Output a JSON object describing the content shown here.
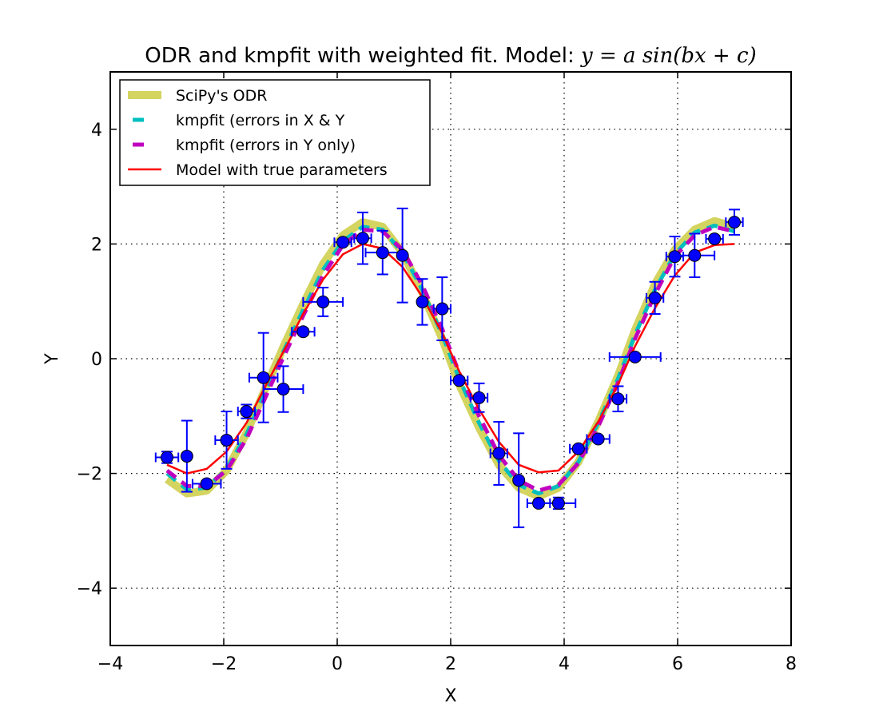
{
  "chart_data": {
    "type": "scatter",
    "title_prefix": "ODR and kmpfit with weighted fit. Model: ",
    "title_formula": "y = a sin(bx + c)",
    "xlabel": "X",
    "ylabel": "Y",
    "xlim": [
      -4,
      8
    ],
    "ylim": [
      -5,
      5
    ],
    "xticks": [
      -4,
      -2,
      0,
      2,
      4,
      6,
      8
    ],
    "yticks": [
      -4,
      -2,
      0,
      2,
      4
    ],
    "xtick_labels": [
      "−4",
      "−2",
      "0",
      "2",
      "4",
      "6",
      "8"
    ],
    "ytick_labels": [
      "−4",
      "−2",
      "0",
      "2",
      "4"
    ],
    "grid": true,
    "legend_position": "top-left",
    "colors": {
      "odr": "#cccc44",
      "kmpfit_xy": "#00bfbf",
      "kmpfit_y": "#bf00bf",
      "true_model": "#ff0000",
      "points": "#0000ff"
    },
    "legend": [
      {
        "label": "SciPy's ODR",
        "color": "#cccc44",
        "style": "thick"
      },
      {
        "label": "kmpfit (errors in X & Y",
        "color": "#00bfbf",
        "style": "dashed"
      },
      {
        "label": "kmpfit (errors in Y only)",
        "color": "#bf00bf",
        "style": "dashed"
      },
      {
        "label": "Model with true parameters",
        "color": "#ff0000",
        "style": "solid"
      }
    ],
    "points": [
      {
        "x": -3.0,
        "y": -1.72,
        "xerr": 0.2,
        "yerr": 0.1
      },
      {
        "x": -2.65,
        "y": -1.7,
        "xerr": 0.0,
        "yerr": 0.62
      },
      {
        "x": -2.3,
        "y": -2.18,
        "xerr": 0.25,
        "yerr": 0.05
      },
      {
        "x": -1.95,
        "y": -1.42,
        "xerr": 0.2,
        "yerr": 0.5
      },
      {
        "x": -1.6,
        "y": -0.92,
        "xerr": 0.15,
        "yerr": 0.12
      },
      {
        "x": -1.3,
        "y": -0.33,
        "xerr": 0.25,
        "yerr": 0.78
      },
      {
        "x": -0.95,
        "y": -0.53,
        "xerr": 0.35,
        "yerr": 0.4
      },
      {
        "x": -0.6,
        "y": 0.47,
        "xerr": 0.2,
        "yerr": 0.05
      },
      {
        "x": -0.25,
        "y": 0.99,
        "xerr": 0.35,
        "yerr": 0.25
      },
      {
        "x": 0.1,
        "y": 2.03,
        "xerr": 0.15,
        "yerr": 0.05
      },
      {
        "x": 0.45,
        "y": 2.1,
        "xerr": 0.15,
        "yerr": 0.45
      },
      {
        "x": 0.8,
        "y": 1.85,
        "xerr": 0.3,
        "yerr": 0.38
      },
      {
        "x": 1.15,
        "y": 1.8,
        "xerr": 0.0,
        "yerr": 0.82
      },
      {
        "x": 1.5,
        "y": 0.99,
        "xerr": 0.0,
        "yerr": 0.4
      },
      {
        "x": 1.85,
        "y": 0.87,
        "xerr": 0.15,
        "yerr": 0.55
      },
      {
        "x": 2.15,
        "y": -0.38,
        "xerr": 0.15,
        "yerr": 0.05
      },
      {
        "x": 2.5,
        "y": -0.68,
        "xerr": 0.15,
        "yerr": 0.25
      },
      {
        "x": 2.85,
        "y": -1.65,
        "xerr": 0.15,
        "yerr": 0.55
      },
      {
        "x": 3.2,
        "y": -2.12,
        "xerr": 0.0,
        "yerr": 0.82
      },
      {
        "x": 3.55,
        "y": -2.52,
        "xerr": 0.2,
        "yerr": 0.05
      },
      {
        "x": 3.9,
        "y": -2.52,
        "xerr": 0.3,
        "yerr": 0.1
      },
      {
        "x": 4.25,
        "y": -1.57,
        "xerr": 0.15,
        "yerr": 0.05
      },
      {
        "x": 4.6,
        "y": -1.4,
        "xerr": 0.2,
        "yerr": 0.05
      },
      {
        "x": 4.95,
        "y": -0.7,
        "xerr": 0.15,
        "yerr": 0.22
      },
      {
        "x": 5.25,
        "y": 0.03,
        "xerr": 0.45,
        "yerr": 0.05
      },
      {
        "x": 5.6,
        "y": 1.06,
        "xerr": 0.15,
        "yerr": 0.28
      },
      {
        "x": 5.95,
        "y": 1.78,
        "xerr": 0.15,
        "yerr": 0.35
      },
      {
        "x": 6.3,
        "y": 1.8,
        "xerr": 0.35,
        "yerr": 0.38
      },
      {
        "x": 6.65,
        "y": 2.09,
        "xerr": 0.15,
        "yerr": 0.05
      },
      {
        "x": 7.0,
        "y": 2.38,
        "xerr": 0.15,
        "yerr": 0.22
      }
    ],
    "series": [
      {
        "key": "odr",
        "x": [
          -3.0,
          -2.65,
          -2.3,
          -1.95,
          -1.6,
          -1.3,
          -0.95,
          -0.6,
          -0.25,
          0.1,
          0.45,
          0.8,
          1.15,
          1.5,
          1.85,
          2.15,
          2.5,
          2.85,
          3.2,
          3.55,
          3.9,
          4.25,
          4.6,
          4.95,
          5.25,
          5.6,
          5.95,
          6.3,
          6.65,
          7.0
        ],
        "y": [
          -2.1,
          -2.35,
          -2.3,
          -1.95,
          -1.3,
          -0.6,
          0.2,
          0.95,
          1.65,
          2.15,
          2.38,
          2.3,
          1.85,
          1.15,
          0.35,
          -0.45,
          -1.2,
          -1.85,
          -2.25,
          -2.4,
          -2.25,
          -1.8,
          -1.1,
          -0.3,
          0.5,
          1.3,
          1.9,
          2.25,
          2.4,
          2.3
        ]
      },
      {
        "key": "kmpfit_xy",
        "x": [
          -3.0,
          -2.65,
          -2.3,
          -1.95,
          -1.6,
          -1.3,
          -0.95,
          -0.6,
          -0.25,
          0.1,
          0.45,
          0.8,
          1.15,
          1.5,
          1.85,
          2.15,
          2.5,
          2.85,
          3.2,
          3.55,
          3.9,
          4.25,
          4.6,
          4.95,
          5.25,
          5.6,
          5.95,
          6.3,
          6.65,
          7.0
        ],
        "y": [
          -2.0,
          -2.28,
          -2.25,
          -1.92,
          -1.32,
          -0.65,
          0.12,
          0.85,
          1.55,
          2.05,
          2.3,
          2.25,
          1.85,
          1.2,
          0.42,
          -0.35,
          -1.12,
          -1.78,
          -2.2,
          -2.35,
          -2.22,
          -1.8,
          -1.12,
          -0.35,
          0.42,
          1.2,
          1.82,
          2.2,
          2.32,
          2.22
        ]
      },
      {
        "key": "kmpfit_y",
        "x": [
          -3.0,
          -2.65,
          -2.3,
          -1.95,
          -1.6,
          -1.3,
          -0.95,
          -0.6,
          -0.25,
          0.1,
          0.45,
          0.8,
          1.15,
          1.5,
          1.85,
          2.15,
          2.5,
          2.85,
          3.2,
          3.55,
          3.9,
          4.25,
          4.6,
          4.95,
          5.25,
          5.6,
          5.95,
          6.3,
          6.65,
          7.0
        ],
        "y": [
          -1.95,
          -2.22,
          -2.22,
          -1.95,
          -1.4,
          -0.75,
          0.02,
          0.75,
          1.45,
          1.98,
          2.25,
          2.22,
          1.9,
          1.28,
          0.52,
          -0.25,
          -1.0,
          -1.68,
          -2.12,
          -2.3,
          -2.2,
          -1.82,
          -1.18,
          -0.42,
          0.35,
          1.12,
          1.78,
          2.15,
          2.3,
          2.22
        ]
      },
      {
        "key": "true_model",
        "x": [
          -3.0,
          -2.65,
          -2.3,
          -1.95,
          -1.6,
          -1.3,
          -0.95,
          -0.6,
          -0.25,
          0.1,
          0.45,
          0.8,
          1.15,
          1.5,
          1.85,
          2.15,
          2.5,
          2.85,
          3.2,
          3.55,
          3.9,
          4.25,
          4.6,
          4.95,
          5.25,
          5.6,
          5.95,
          6.3,
          6.65,
          7.0
        ],
        "y": [
          -1.85,
          -2.0,
          -1.92,
          -1.62,
          -1.12,
          -0.55,
          0.12,
          0.78,
          1.38,
          1.82,
          2.0,
          1.92,
          1.6,
          1.08,
          0.45,
          -0.22,
          -0.88,
          -1.45,
          -1.85,
          -1.98,
          -1.95,
          -1.62,
          -1.1,
          -0.45,
          0.22,
          0.88,
          1.45,
          1.85,
          1.98,
          2.0
        ]
      }
    ]
  }
}
